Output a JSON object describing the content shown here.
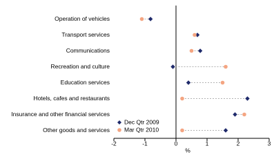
{
  "chart_data": {
    "type": "dot",
    "xlabel": "%",
    "categories": [
      "Operation of vehicles",
      "Transport services",
      "Communications",
      "Recreation and culture",
      "Education services",
      "Hotels, cafes and restaurants",
      "Insurance and other financial services",
      "Other goods and services"
    ],
    "series": [
      {
        "name": "Dec Qtr 2009",
        "color": "#1f2a6b",
        "marker": "diamond",
        "values": [
          -0.82,
          0.69,
          0.78,
          -0.1,
          0.4,
          2.3,
          1.9,
          1.6
        ]
      },
      {
        "name": "Mar Qtr 2010",
        "color": "#f4a582",
        "marker": "circle",
        "values": [
          -1.1,
          0.6,
          0.5,
          1.6,
          1.5,
          0.2,
          2.2,
          0.2
        ]
      }
    ],
    "xlim": [
      -2,
      3
    ],
    "xticks": [
      -2,
      -1,
      0,
      1,
      2,
      3
    ],
    "legend": "lower left"
  }
}
